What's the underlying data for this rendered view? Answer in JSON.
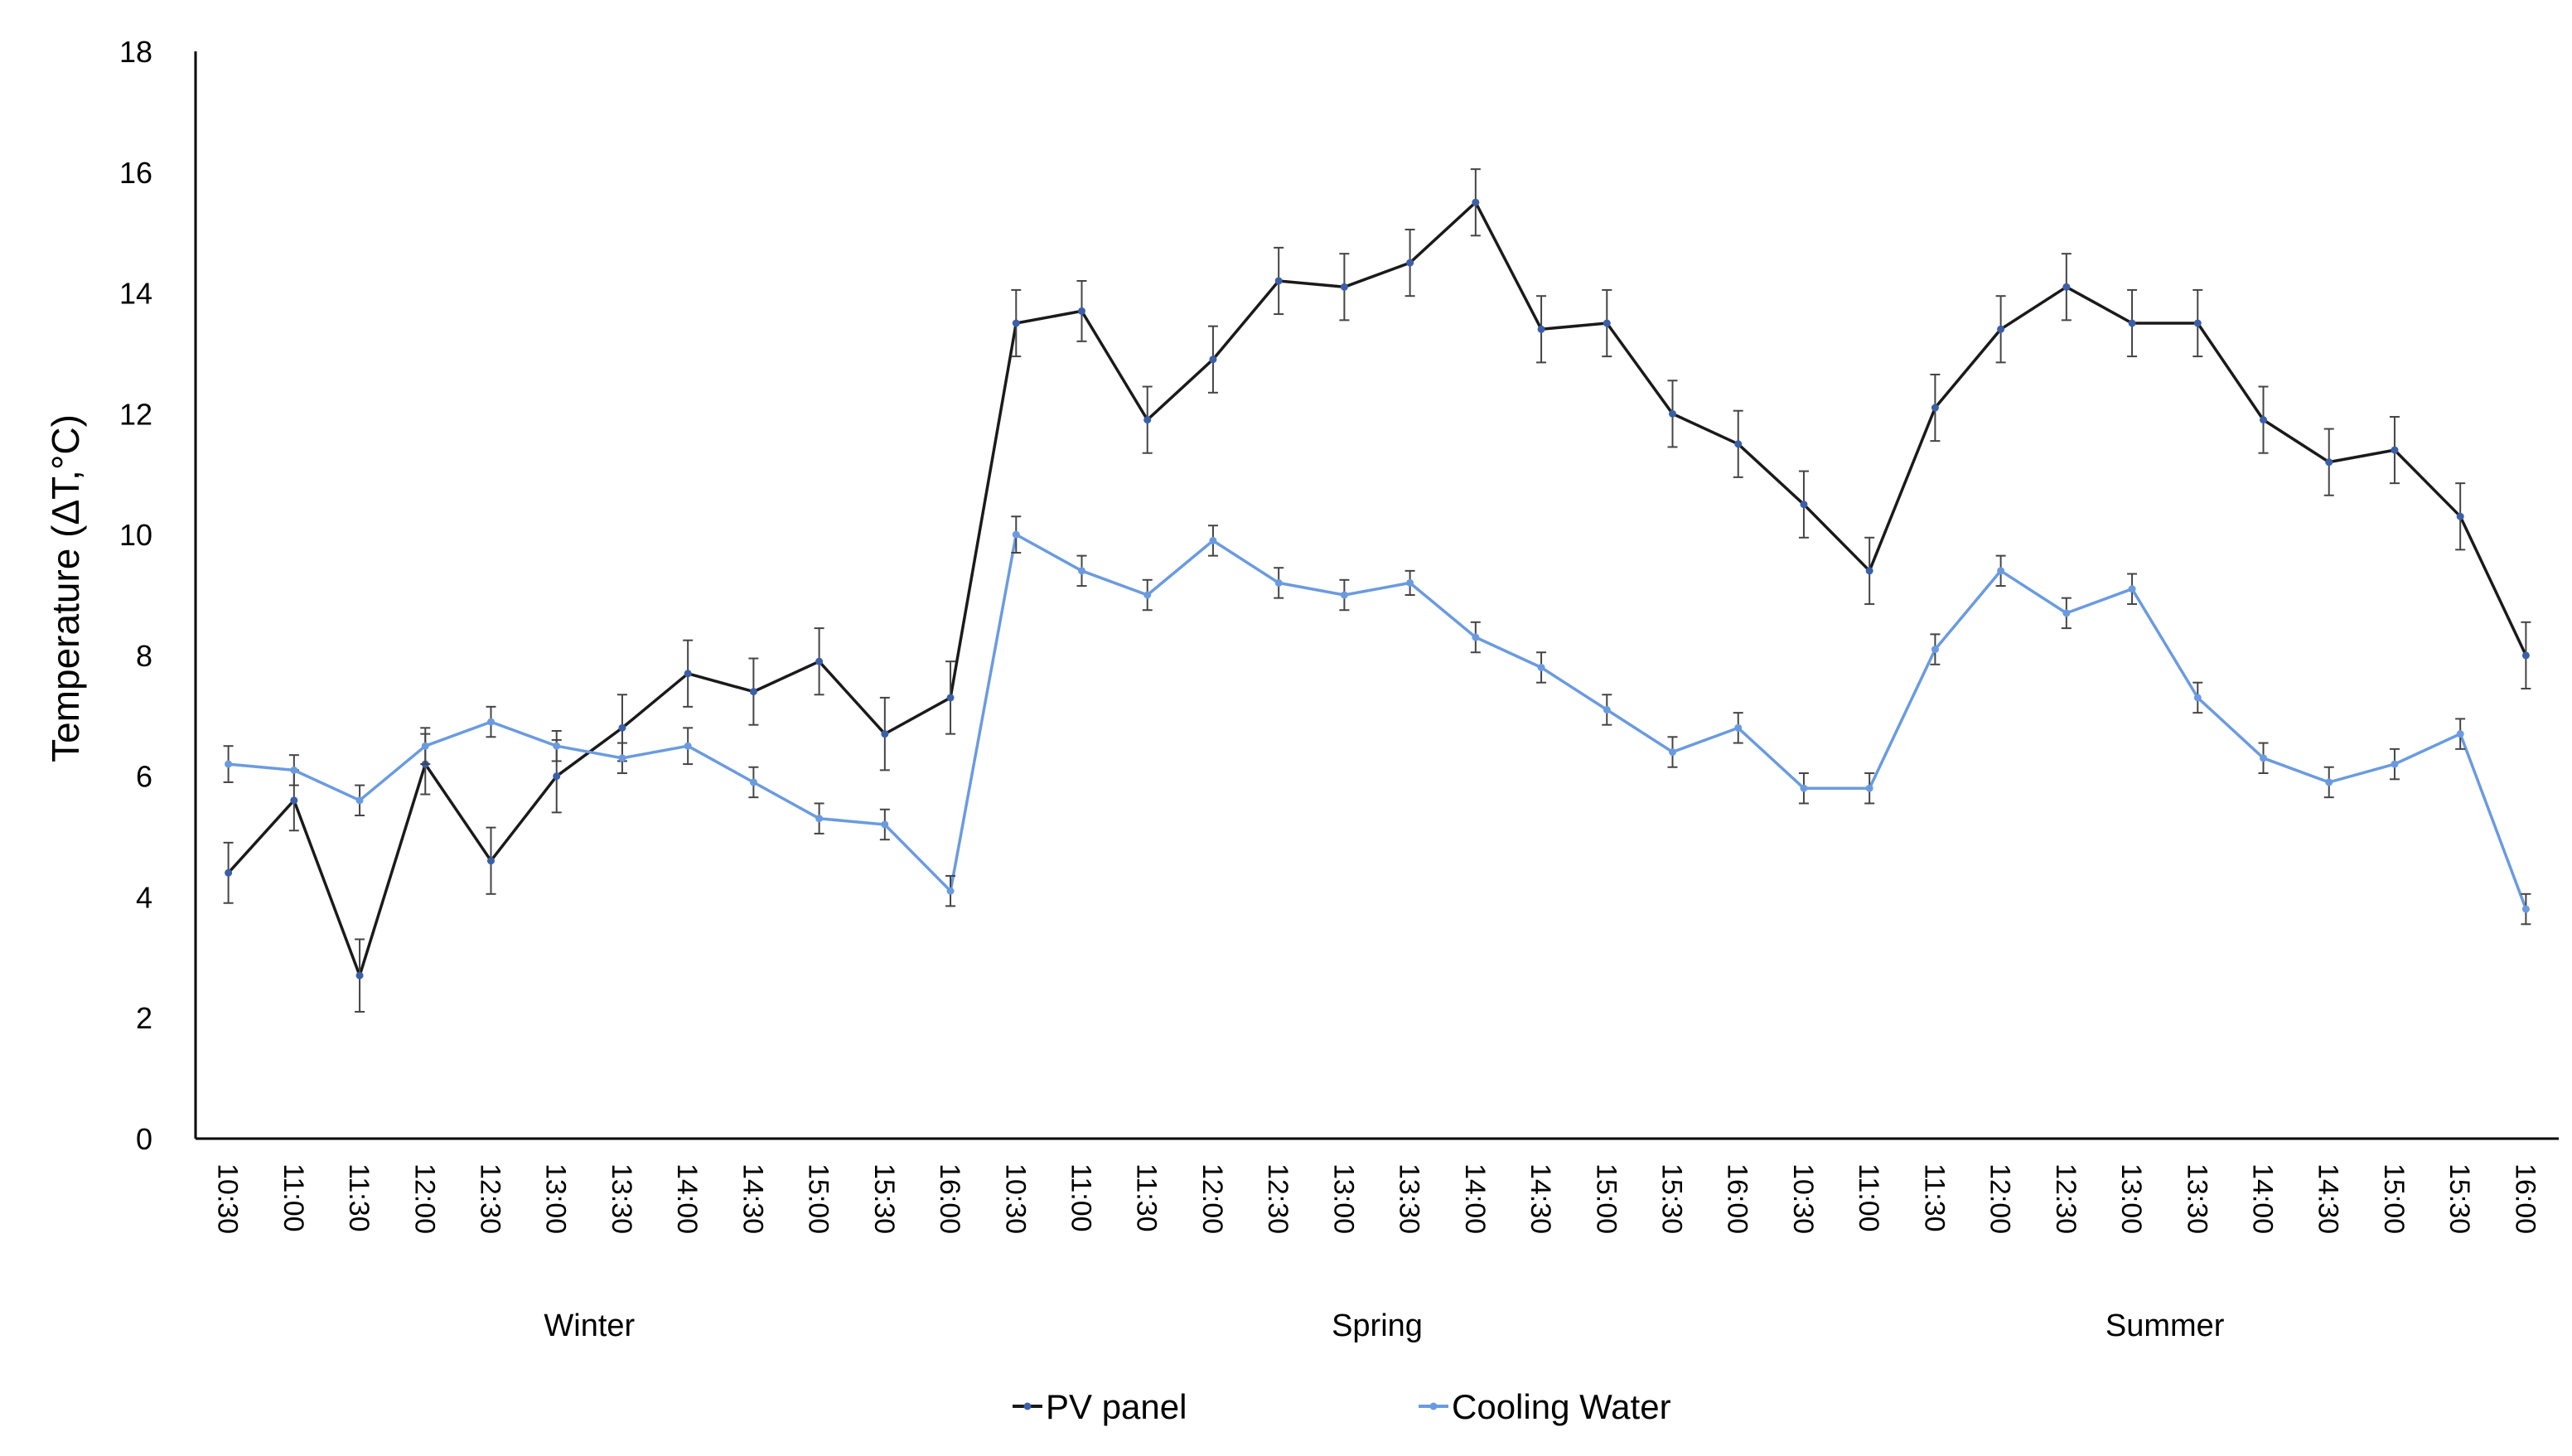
{
  "chart_data": {
    "type": "line",
    "title": "",
    "xlabel": "",
    "ylabel": "Temperature (ΔT,°C)",
    "ylim": [
      0,
      18
    ],
    "yticks": [
      0,
      2,
      4,
      6,
      8,
      10,
      12,
      14,
      16,
      18
    ],
    "categories": [
      "10:30",
      "11:00",
      "11:30",
      "12:00",
      "12:30",
      "13:00",
      "13:30",
      "14:00",
      "14:30",
      "15:00",
      "15:30",
      "16:00",
      "10:30",
      "11:00",
      "11:30",
      "12:00",
      "12:30",
      "13:00",
      "13:30",
      "14:00",
      "14:30",
      "15:00",
      "15:30",
      "16:00",
      "10:30",
      "11:00",
      "11:30",
      "12:00",
      "12:30",
      "13:00",
      "13:30",
      "14:00",
      "14:30",
      "15:00",
      "15:30",
      "16:00"
    ],
    "groups": [
      {
        "label": "Winter",
        "start": 0,
        "end": 11
      },
      {
        "label": "Spring",
        "start": 12,
        "end": 23
      },
      {
        "label": "Summer",
        "start": 24,
        "end": 35
      }
    ],
    "grid": false,
    "legend": "bottom",
    "series": [
      {
        "name": "PV panel",
        "color": "#1a1a1a",
        "values": [
          4.4,
          5.6,
          2.7,
          6.2,
          4.6,
          6.0,
          6.8,
          7.7,
          7.4,
          7.9,
          6.7,
          7.3,
          13.5,
          13.7,
          11.9,
          12.9,
          14.2,
          14.1,
          14.5,
          15.5,
          13.4,
          13.5,
          12.0,
          11.5,
          10.5,
          9.4,
          12.1,
          13.4,
          14.1,
          13.5,
          13.5,
          11.9,
          11.2,
          11.4,
          10.3,
          8.0
        ],
        "errors": [
          0.5,
          0.5,
          0.6,
          0.5,
          0.55,
          0.6,
          0.55,
          0.55,
          0.55,
          0.55,
          0.6,
          0.6,
          0.55,
          0.5,
          0.55,
          0.55,
          0.55,
          0.55,
          0.55,
          0.55,
          0.55,
          0.55,
          0.55,
          0.55,
          0.55,
          0.55,
          0.55,
          0.55,
          0.55,
          0.55,
          0.55,
          0.55,
          0.55,
          0.55,
          0.55,
          0.55
        ]
      },
      {
        "name": "Cooling Water",
        "color": "#6a9be0",
        "values": [
          6.2,
          6.1,
          5.6,
          6.5,
          6.9,
          6.5,
          6.3,
          6.5,
          5.9,
          5.3,
          5.2,
          4.1,
          10.0,
          9.4,
          9.0,
          9.9,
          9.2,
          9.0,
          9.2,
          8.3,
          7.8,
          7.1,
          6.4,
          6.8,
          5.8,
          5.8,
          8.1,
          9.4,
          8.7,
          9.1,
          7.3,
          6.3,
          5.9,
          6.2,
          6.7,
          3.8
        ],
        "errors": [
          0.3,
          0.25,
          0.25,
          0.3,
          0.25,
          0.25,
          0.25,
          0.3,
          0.25,
          0.25,
          0.25,
          0.25,
          0.3,
          0.25,
          0.25,
          0.25,
          0.25,
          0.25,
          0.2,
          0.25,
          0.25,
          0.25,
          0.25,
          0.25,
          0.25,
          0.25,
          0.25,
          0.25,
          0.25,
          0.25,
          0.25,
          0.25,
          0.25,
          0.25,
          0.25,
          0.25
        ]
      }
    ]
  }
}
